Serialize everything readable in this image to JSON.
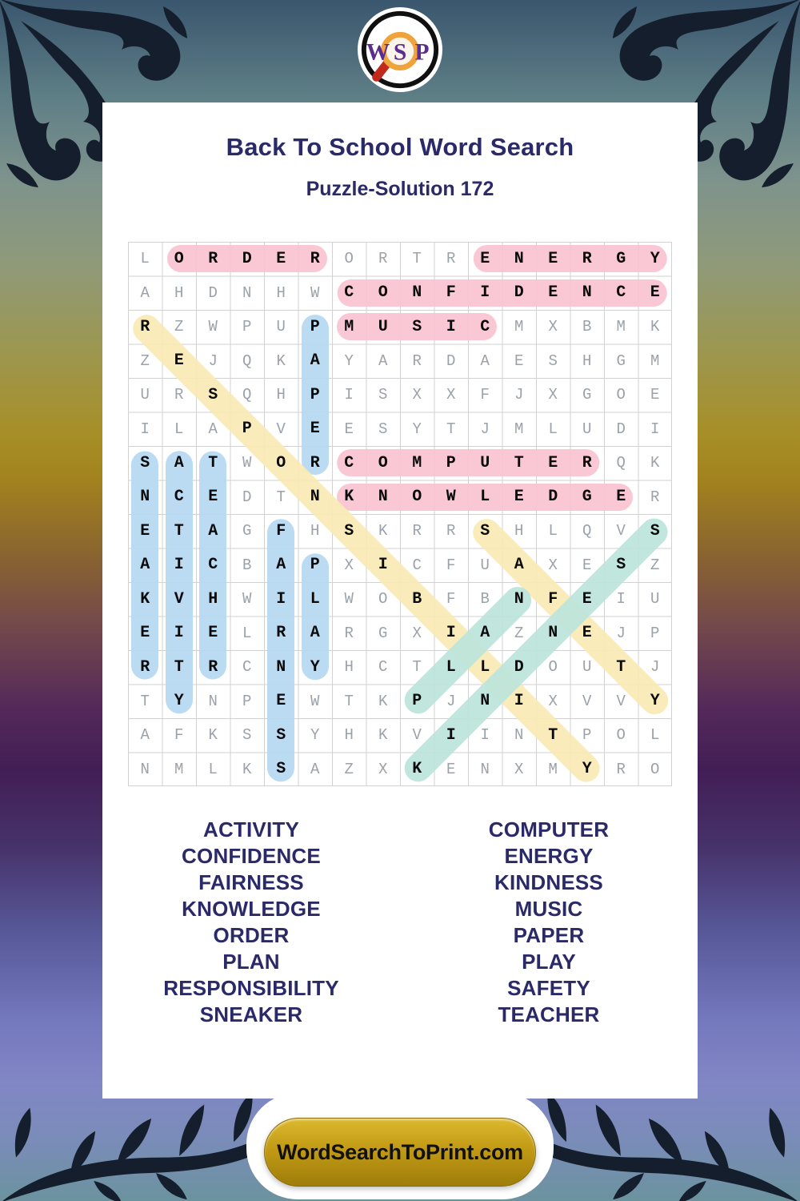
{
  "logo": {
    "letters": [
      "W",
      "S",
      "P"
    ],
    "letter_color": "#5b2c92",
    "ring_color": "#f0a23b",
    "handle_color": "#c1291d"
  },
  "header": {
    "title": "Back To School Word Search",
    "subtitle": "Puzzle-Solution 172",
    "text_color": "#2b2a68"
  },
  "puzzle": {
    "size": 16,
    "rows": [
      "LORDERORTRENERGY",
      "AHDNHWCONFIDENCE",
      "RZWPUPMUSICMXBMK",
      "ZEJQKAYARDAESHGM",
      "URSQHPISXXFJXGOE",
      "ILAPVEESYTJMLUDI",
      "SATWORCOMPUTERQK",
      "NCEDTNKNOWLEDGER",
      "ETAGFHSKRRSHLQVS",
      "AICBAPXICFUAXESZ",
      "KVHWILWOBFBNFEIU",
      "EIELRARGXIAZNEJP",
      "RTRCNYHCTLLDOUTJ",
      "TYNPEWTKPJNIXVVY",
      "AFKSSYHKVIINTPOL",
      "NMLKSAZXKENXMYRO"
    ],
    "highlight_colors": {
      "pink": "#f8c3d0",
      "blue": "#b5d8f2",
      "yellow": "#f8e9b4",
      "teal": "#bce4da"
    },
    "words": [
      {
        "word": "ORDER",
        "row": 1,
        "col": 2,
        "dir": "H",
        "color": "pink"
      },
      {
        "word": "ENERGY",
        "row": 1,
        "col": 11,
        "dir": "H",
        "color": "pink"
      },
      {
        "word": "CONFIDENCE",
        "row": 2,
        "col": 7,
        "dir": "H",
        "color": "pink"
      },
      {
        "word": "MUSIC",
        "row": 3,
        "col": 7,
        "dir": "H",
        "color": "pink"
      },
      {
        "word": "COMPUTER",
        "row": 7,
        "col": 7,
        "dir": "H",
        "color": "pink"
      },
      {
        "word": "KNOWLEDGE",
        "row": 8,
        "col": 7,
        "dir": "H",
        "color": "pink"
      },
      {
        "word": "PAPER",
        "row": 3,
        "col": 6,
        "dir": "V",
        "color": "blue"
      },
      {
        "word": "SNEAKER",
        "row": 7,
        "col": 1,
        "dir": "V",
        "color": "blue"
      },
      {
        "word": "ACTIVITY",
        "row": 7,
        "col": 2,
        "dir": "V",
        "color": "blue"
      },
      {
        "word": "TEACHER",
        "row": 7,
        "col": 3,
        "dir": "V",
        "color": "blue"
      },
      {
        "word": "FAIRNESS",
        "row": 9,
        "col": 5,
        "dir": "V",
        "color": "blue"
      },
      {
        "word": "PLAY",
        "row": 10,
        "col": 6,
        "dir": "V",
        "color": "blue"
      },
      {
        "word": "RESPONSIBILITY",
        "row": 3,
        "col": 1,
        "dir": "DDR",
        "color": "yellow"
      },
      {
        "word": "SAFETY",
        "row": 9,
        "col": 11,
        "dir": "DDR",
        "color": "yellow"
      },
      {
        "word": "PLAN",
        "row": 14,
        "col": 9,
        "dir": "DUR",
        "color": "teal"
      },
      {
        "word": "KINDNESS",
        "row": 16,
        "col": 9,
        "dir": "DUR",
        "color": "teal"
      }
    ]
  },
  "word_list": {
    "left": [
      "ACTIVITY",
      "CONFIDENCE",
      "FAIRNESS",
      "KNOWLEDGE",
      "ORDER",
      "PLAN",
      "RESPONSIBILITY",
      "SNEAKER"
    ],
    "right": [
      "COMPUTER",
      "ENERGY",
      "KINDNESS",
      "MUSIC",
      "PAPER",
      "PLAY",
      "SAFETY",
      "TEACHER"
    ]
  },
  "footer": {
    "site": "WordSearchToPrint.com"
  }
}
